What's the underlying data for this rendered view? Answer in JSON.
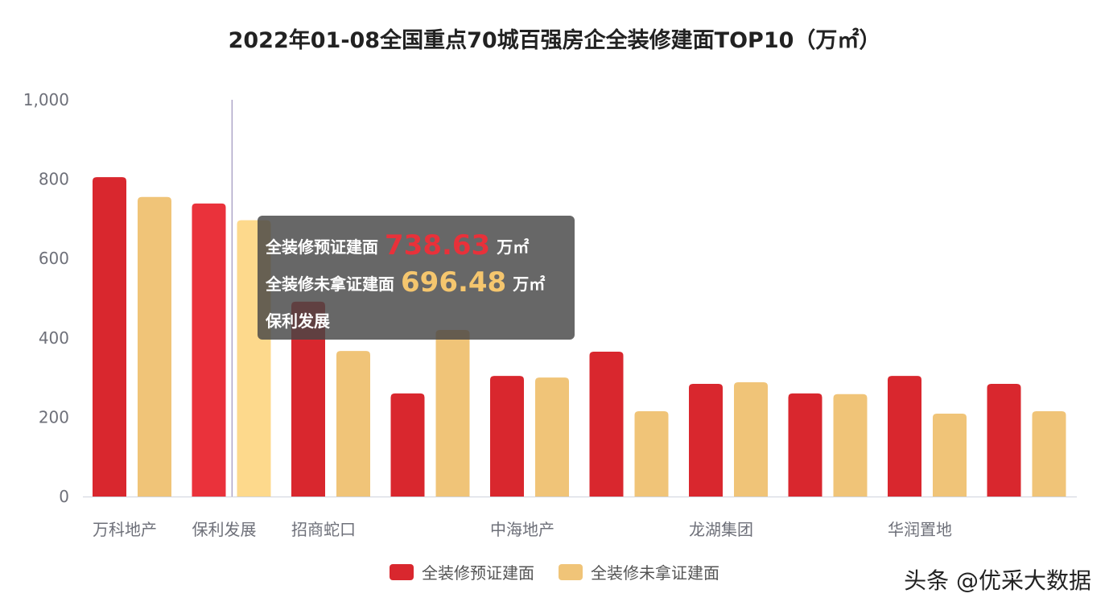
{
  "chart_data": {
    "type": "bar",
    "title": "2022年01-08全国重点70城百强房企全装修建面TOP10（万㎡）",
    "categories": [
      "万科地产",
      "保利发展",
      "招商蛇口",
      "",
      "中海地产",
      "",
      "龙湖集团",
      "",
      "华润置地",
      ""
    ],
    "series": [
      {
        "name": "全装修预证建面",
        "color": "#d9272e",
        "values": [
          805,
          738.63,
          491,
          260,
          304,
          365,
          284,
          260,
          304,
          284
        ]
      },
      {
        "name": "全装修未拿证建面",
        "color": "#f0c478",
        "values": [
          755,
          696.48,
          367,
          420,
          300,
          215,
          288,
          258,
          209,
          215
        ]
      }
    ],
    "ylim": [
      0,
      1000
    ],
    "yticks": [
      "0",
      "200",
      "400",
      "600",
      "800",
      "1,000"
    ],
    "grid": false,
    "legend": "bottom",
    "highlighted_index": 1
  },
  "tooltip": {
    "line1_label": "全装修预证建面",
    "line1_value": "738.63",
    "line1_unit": "万㎡",
    "line2_label": "全装修未拿证建面",
    "line2_value": "696.48",
    "line2_unit": "万㎡",
    "category": "保利发展"
  },
  "watermark": "头条 @优采大数据"
}
